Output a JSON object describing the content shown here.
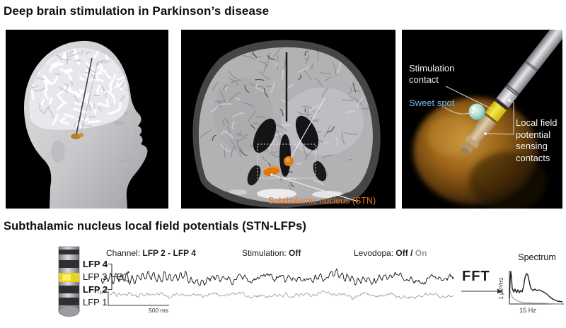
{
  "header": {
    "title": "Deep brain stimulation in Parkinson’s disease"
  },
  "section": {
    "title": "Subthalamic nucleus local field potentials (STN-LFPs)"
  },
  "mri_panel": {
    "stn_label": "Subthalamic nucleus (STN)",
    "stn_color": "#e8721c"
  },
  "lead_panel": {
    "stimulation_contact": "Stimulation contact",
    "sweet_spot": "Sweet spot",
    "sensing_contacts": "Local field potential sensing contacts",
    "sweet_spot_color": "#74b9e6",
    "contact_yellow": "#e6cf12"
  },
  "electrode": {
    "contacts": [
      {
        "label": "LFP 4",
        "bold": true,
        "highlight": false
      },
      {
        "label": "LFP 3",
        "bold": false,
        "highlight": true
      },
      {
        "label": "LFP 2",
        "bold": true,
        "highlight": false
      },
      {
        "label": "LFP 1",
        "bold": false,
        "highlight": false
      }
    ]
  },
  "recording": {
    "channel_label": "Channel:",
    "channel_value": "LFP 2 - LFP 4",
    "stim_label": "Stimulation:",
    "stim_value": "Off",
    "levodopa_label": "Levodopa:",
    "levodopa_off": "Off",
    "levodopa_slash": "/",
    "levodopa_on": "On",
    "scale_voltage": "20 μV",
    "scale_time": "500 ms",
    "traces": {
      "seed": 77813,
      "off": {
        "name": "Levodopa Off",
        "color": "#141414",
        "baseline": 21,
        "osc_amp": 5.0,
        "osc_period": 7.6,
        "noise": 2.6
      },
      "on": {
        "name": "Levodopa On",
        "color": "#9c9c9c",
        "baseline": 46,
        "osc_amp": 1.2,
        "osc_period": 7.6,
        "noise": 1.6
      }
    }
  },
  "fft": {
    "label": "FFT"
  },
  "spectrum": {
    "title": "Spectrum",
    "ylabel": "1 μV²/Hz",
    "xlabel": "15 Hz",
    "curves": {
      "off": [
        [
          20,
          69
        ],
        [
          21,
          44
        ],
        [
          22,
          31
        ],
        [
          23,
          40
        ],
        [
          24,
          55
        ],
        [
          26,
          60
        ],
        [
          28,
          56
        ],
        [
          30,
          61
        ],
        [
          32,
          57
        ],
        [
          34,
          61
        ],
        [
          36,
          58
        ],
        [
          38,
          60
        ],
        [
          40,
          52
        ],
        [
          42,
          40
        ],
        [
          44,
          34
        ],
        [
          46,
          36
        ],
        [
          48,
          45
        ],
        [
          50,
          54
        ],
        [
          53,
          58
        ],
        [
          56,
          56
        ],
        [
          59,
          58
        ],
        [
          62,
          57
        ],
        [
          66,
          59
        ],
        [
          70,
          61
        ],
        [
          74,
          64
        ],
        [
          78,
          68
        ],
        [
          83,
          71
        ],
        [
          88,
          73
        ],
        [
          95,
          74
        ]
      ],
      "on": [
        [
          20,
          55
        ],
        [
          22,
          62
        ],
        [
          24,
          67
        ],
        [
          27,
          70
        ],
        [
          30,
          72
        ],
        [
          35,
          74
        ],
        [
          42,
          75
        ],
        [
          55,
          76
        ],
        [
          70,
          76
        ],
        [
          85,
          77
        ],
        [
          95,
          77
        ]
      ],
      "off_color": "#1c1c1c",
      "on_color": "#a0a0a0"
    }
  }
}
